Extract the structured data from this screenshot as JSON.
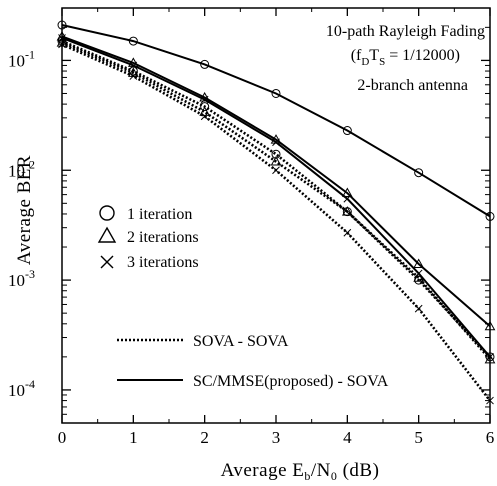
{
  "chart_data": {
    "type": "line",
    "title": "",
    "xlabel": {
      "main": "Average  E",
      "sub1": "b",
      "mid": "/N",
      "sub2": "0",
      "tail": " (dB)"
    },
    "ylabel": "Average   BER",
    "x_ticks": [
      "0",
      "1",
      "2",
      "3",
      "4",
      "5",
      "6"
    ],
    "y_ticks": [
      {
        "base": "10",
        "exp": "-1",
        "value": 0.1
      },
      {
        "base": "10",
        "exp": "-2",
        "value": 0.01
      },
      {
        "base": "10",
        "exp": "-3",
        "value": 0.001
      },
      {
        "base": "10",
        "exp": "-4",
        "value": 0.0001
      }
    ],
    "xlim": [
      0,
      6
    ],
    "ylim": [
      5e-05,
      0.3
    ],
    "y_scale": "log",
    "grid": false,
    "annotations": {
      "line1": "10-path Rayleigh Fading",
      "line2_open": "(f",
      "line2_sub1": "D",
      "line2_mid": "T",
      "line2_sub2": "S",
      "line2_tail": " = 1/12000)",
      "line3": "2-branch antenna"
    },
    "marker_legend": [
      {
        "marker": "circle",
        "label": "1 iteration"
      },
      {
        "marker": "triangle",
        "label": "2 iterations"
      },
      {
        "marker": "x",
        "label": "3 iterations"
      }
    ],
    "style_legend": [
      {
        "style": "dotted",
        "label": "SOVA - SOVA"
      },
      {
        "style": "solid",
        "label": "SC/MMSE(proposed) - SOVA"
      }
    ],
    "series": [
      {
        "style": "solid",
        "marker": "circle",
        "x": [
          0,
          1,
          2,
          3,
          4,
          5,
          6
        ],
        "values": [
          0.21,
          0.15,
          0.092,
          0.05,
          0.023,
          0.0095,
          0.0038
        ]
      },
      {
        "style": "solid",
        "marker": "triangle",
        "x": [
          0,
          1,
          2,
          3,
          4,
          5,
          6
        ],
        "values": [
          0.165,
          0.095,
          0.046,
          0.019,
          0.0062,
          0.0014,
          0.00038
        ]
      },
      {
        "style": "solid",
        "marker": "x",
        "x": [
          0,
          1,
          2,
          3,
          4,
          5,
          6
        ],
        "values": [
          0.16,
          0.09,
          0.044,
          0.018,
          0.0055,
          0.00115,
          0.0002
        ]
      },
      {
        "style": "dotted",
        "marker": "circle",
        "x": [
          0,
          1,
          2,
          3,
          4,
          5,
          6
        ],
        "values": [
          0.15,
          0.08,
          0.038,
          0.014,
          0.0042,
          0.001,
          0.0002
        ]
      },
      {
        "style": "dotted",
        "marker": "triangle",
        "x": [
          0,
          1,
          2,
          3,
          4,
          5,
          6
        ],
        "values": [
          0.145,
          0.077,
          0.034,
          0.012,
          0.0042,
          0.00105,
          0.00019
        ]
      },
      {
        "style": "dotted",
        "marker": "x",
        "x": [
          0,
          1,
          2,
          3,
          4,
          5,
          6
        ],
        "values": [
          0.14,
          0.072,
          0.031,
          0.01,
          0.0027,
          0.00055,
          8e-05
        ]
      }
    ]
  }
}
